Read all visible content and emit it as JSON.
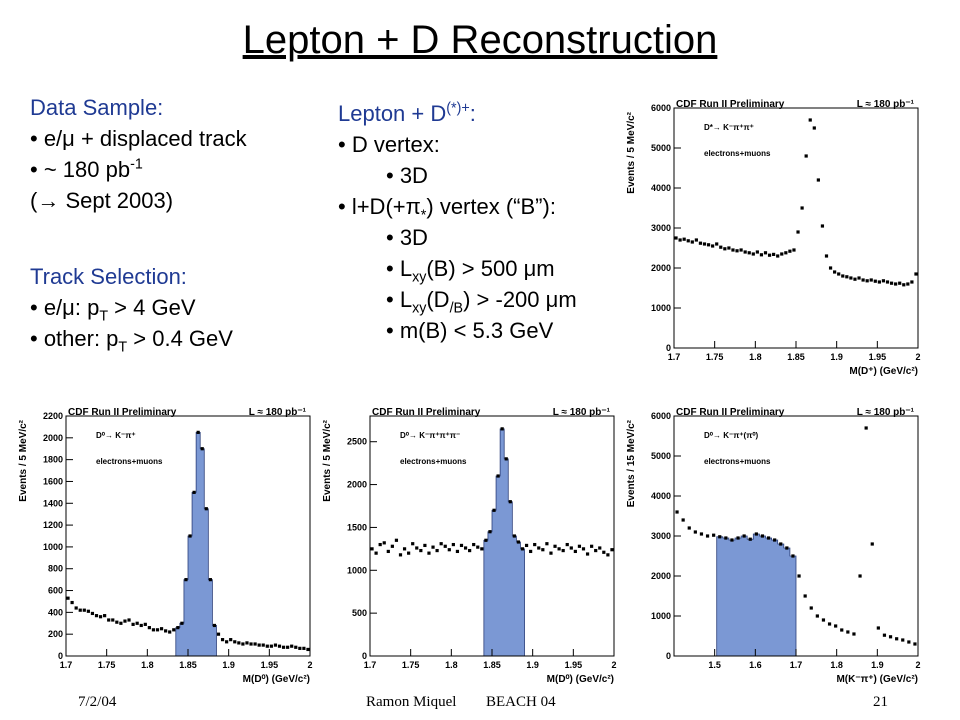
{
  "title": "Lepton + D Reconstruction",
  "data_sample": {
    "heading": "Data Sample:",
    "items": [
      "e/μ + displaced track",
      "~ 180 pb-1",
      "(→ Sept 2003)"
    ]
  },
  "track_selection": {
    "heading": "Track Selection:",
    "items": [
      "e/μ: pT > 4 GeV",
      "other: pT > 0.4 GeV"
    ]
  },
  "lepton_d": {
    "heading": "Lepton + D(*)+:",
    "items": [
      "D vertex:",
      "3D",
      "l+D(+π*) vertex (“B”):",
      "3D",
      "Lxy(B) > 500 μm",
      "Lxy(D/B) > -200 μm",
      "m(B) < 5.3 GeV"
    ]
  },
  "footer": {
    "date": "7/2/04",
    "author": "Ramon Miquel",
    "conference": "BEACH 04",
    "page": "21"
  },
  "colors": {
    "heading": "#1f3a93",
    "fill": "#7b98d4",
    "marker": "#000000"
  },
  "chart_data": [
    {
      "type": "scatter",
      "header": "CDF Run II Preliminary",
      "lumi": "L ≈ 180 pb⁻¹",
      "decay": "D*→ K⁻π⁺π⁺",
      "sample": "electrons+muons",
      "xlabel": "M(D⁺) (GeV/c²)",
      "ylabel": "Events / 5 MeV/c²",
      "xlim": [
        1.7,
        2.0
      ],
      "ylim": [
        0,
        6000
      ],
      "xticks": [
        1.7,
        1.75,
        1.8,
        1.85,
        1.9,
        1.95,
        2.0
      ],
      "xticklabels": [
        "1.7",
        "1.75",
        "1.8",
        "1.85",
        "1.9",
        "1.95",
        "2"
      ],
      "yticks": [
        0,
        1000,
        2000,
        3000,
        4000,
        5000,
        6000
      ],
      "x": [
        1.7025,
        1.7075,
        1.7125,
        1.7175,
        1.7225,
        1.7275,
        1.7325,
        1.7375,
        1.7425,
        1.7475,
        1.7525,
        1.7575,
        1.7625,
        1.7675,
        1.7725,
        1.7775,
        1.7825,
        1.7875,
        1.7925,
        1.7975,
        1.8025,
        1.8075,
        1.8125,
        1.8175,
        1.8225,
        1.8275,
        1.8325,
        1.8375,
        1.8425,
        1.8475,
        1.8525,
        1.8575,
        1.8625,
        1.8675,
        1.8725,
        1.8775,
        1.8825,
        1.8875,
        1.8925,
        1.8975,
        1.9025,
        1.9075,
        1.9125,
        1.9175,
        1.9225,
        1.9275,
        1.9325,
        1.9375,
        1.9425,
        1.9475,
        1.9525,
        1.9575,
        1.9625,
        1.9675,
        1.9725,
        1.9775,
        1.9825,
        1.9875,
        1.9925,
        1.9975
      ],
      "y": [
        2750,
        2700,
        2720,
        2680,
        2650,
        2700,
        2620,
        2600,
        2580,
        2550,
        2600,
        2520,
        2480,
        2500,
        2450,
        2430,
        2450,
        2400,
        2380,
        2350,
        2400,
        2330,
        2380,
        2320,
        2340,
        2300,
        2350,
        2380,
        2420,
        2450,
        2900,
        3500,
        4800,
        5700,
        5500,
        4200,
        3050,
        2300,
        2000,
        1900,
        1850,
        1800,
        1780,
        1750,
        1720,
        1750,
        1700,
        1680,
        1700,
        1670,
        1650,
        1680,
        1650,
        1620,
        1600,
        1620,
        1580,
        1600,
        1650,
        1850
      ],
      "filled": false
    },
    {
      "type": "area",
      "header": "CDF Run II Preliminary",
      "lumi": "L ≈ 180 pb⁻¹",
      "decay": "D⁰→ K⁻π⁺",
      "sample": "electrons+muons",
      "xlabel": "M(D⁰) (GeV/c²)",
      "ylabel": "Events / 5 MeV/c²",
      "xlim": [
        1.7,
        2.0
      ],
      "ylim": [
        0,
        2200
      ],
      "xticks": [
        1.7,
        1.75,
        1.8,
        1.85,
        1.9,
        1.95,
        2.0
      ],
      "xticklabels": [
        "1.7",
        "1.75",
        "1.8",
        "1.85",
        "1.9",
        "1.95",
        "2"
      ],
      "yticks": [
        0,
        200,
        400,
        600,
        800,
        1000,
        1200,
        1400,
        1600,
        1800,
        2000,
        2200
      ],
      "x": [
        1.7025,
        1.7075,
        1.7125,
        1.7175,
        1.7225,
        1.7275,
        1.7325,
        1.7375,
        1.7425,
        1.7475,
        1.7525,
        1.7575,
        1.7625,
        1.7675,
        1.7725,
        1.7775,
        1.7825,
        1.7875,
        1.7925,
        1.7975,
        1.8025,
        1.8075,
        1.8125,
        1.8175,
        1.8225,
        1.8275,
        1.8325,
        1.8375,
        1.8425,
        1.8475,
        1.8525,
        1.8575,
        1.8625,
        1.8675,
        1.8725,
        1.8775,
        1.8825,
        1.8875,
        1.8925,
        1.8975,
        1.9025,
        1.9075,
        1.9125,
        1.9175,
        1.9225,
        1.9275,
        1.9325,
        1.9375,
        1.9425,
        1.9475,
        1.9525,
        1.9575,
        1.9625,
        1.9675,
        1.9725,
        1.9775,
        1.9825,
        1.9875,
        1.9925,
        1.9975
      ],
      "y": [
        530,
        490,
        440,
        420,
        420,
        410,
        390,
        370,
        360,
        370,
        330,
        330,
        310,
        300,
        320,
        330,
        290,
        300,
        280,
        290,
        260,
        240,
        240,
        250,
        230,
        220,
        240,
        260,
        300,
        700,
        1100,
        1500,
        2050,
        1900,
        1350,
        700,
        280,
        200,
        150,
        130,
        150,
        130,
        120,
        110,
        120,
        110,
        110,
        100,
        100,
        90,
        90,
        100,
        90,
        80,
        80,
        90,
        80,
        70,
        70,
        60
      ],
      "filled": true,
      "fill_range": [
        1.835,
        1.885
      ]
    },
    {
      "type": "area",
      "header": "CDF Run II Preliminary",
      "lumi": "L ≈ 180 pb⁻¹",
      "decay": "D⁰→ K⁻π⁺π⁺π⁻",
      "sample": "electrons+muons",
      "xlabel": "M(D⁰) (GeV/c²)",
      "ylabel": "Events / 5 MeV/c²",
      "xlim": [
        1.7,
        2.0
      ],
      "ylim": [
        0,
        2800
      ],
      "xticks": [
        1.7,
        1.75,
        1.8,
        1.85,
        1.9,
        1.95,
        2.0
      ],
      "xticklabels": [
        "1.7",
        "1.75",
        "1.8",
        "1.85",
        "1.9",
        "1.95",
        "2"
      ],
      "yticks": [
        0,
        500,
        1000,
        1500,
        2000,
        2500
      ],
      "x": [
        1.7025,
        1.7075,
        1.7125,
        1.7175,
        1.7225,
        1.7275,
        1.7325,
        1.7375,
        1.7425,
        1.7475,
        1.7525,
        1.7575,
        1.7625,
        1.7675,
        1.7725,
        1.7775,
        1.7825,
        1.7875,
        1.7925,
        1.7975,
        1.8025,
        1.8075,
        1.8125,
        1.8175,
        1.8225,
        1.8275,
        1.8325,
        1.8375,
        1.8425,
        1.8475,
        1.8525,
        1.8575,
        1.8625,
        1.8675,
        1.8725,
        1.8775,
        1.8825,
        1.8875,
        1.8925,
        1.8975,
        1.9025,
        1.9075,
        1.9125,
        1.9175,
        1.9225,
        1.9275,
        1.9325,
        1.9375,
        1.9425,
        1.9475,
        1.9525,
        1.9575,
        1.9625,
        1.9675,
        1.9725,
        1.9775,
        1.9825,
        1.9875,
        1.9925,
        1.9975
      ],
      "y": [
        1250,
        1200,
        1300,
        1320,
        1220,
        1280,
        1350,
        1180,
        1250,
        1200,
        1310,
        1260,
        1230,
        1290,
        1200,
        1270,
        1230,
        1310,
        1280,
        1240,
        1300,
        1220,
        1290,
        1260,
        1230,
        1300,
        1270,
        1250,
        1350,
        1450,
        1700,
        2100,
        2650,
        2300,
        1800,
        1400,
        1330,
        1250,
        1290,
        1220,
        1300,
        1260,
        1240,
        1310,
        1200,
        1280,
        1250,
        1230,
        1300,
        1260,
        1220,
        1280,
        1250,
        1190,
        1280,
        1230,
        1260,
        1210,
        1180,
        1240
      ],
      "filled": true,
      "fill_range": [
        1.84,
        1.89
      ]
    },
    {
      "type": "area",
      "header": "CDF Run II Preliminary",
      "lumi": "L ≈ 180 pb⁻¹",
      "decay": "D⁰→ K⁻π⁺(π⁰)",
      "sample": "electrons+muons",
      "xlabel": "M(K⁻π⁺) (GeV/c²)",
      "ylabel": "Events / 15 MeV/c²",
      "xlim": [
        1.4,
        2.0
      ],
      "ylim": [
        0,
        6000
      ],
      "xticks": [
        1.5,
        1.6,
        1.7,
        1.8,
        1.9,
        2.0
      ],
      "xticklabels": [
        "1.5",
        "1.6",
        "1.7",
        "1.8",
        "1.9",
        "2"
      ],
      "yticks": [
        0,
        1000,
        2000,
        3000,
        4000,
        5000,
        6000
      ],
      "x": [
        1.4075,
        1.4225,
        1.4375,
        1.4525,
        1.4675,
        1.4825,
        1.4975,
        1.5125,
        1.5275,
        1.5425,
        1.5575,
        1.5725,
        1.5875,
        1.6025,
        1.6175,
        1.6325,
        1.6475,
        1.6625,
        1.6775,
        1.6925,
        1.7075,
        1.7225,
        1.7375,
        1.7525,
        1.7675,
        1.7825,
        1.7975,
        1.8125,
        1.8275,
        1.8425,
        1.8575,
        1.8725,
        1.8875,
        1.9025,
        1.9175,
        1.9325,
        1.9475,
        1.9625,
        1.9775,
        1.9925
      ],
      "y": [
        3600,
        3400,
        3200,
        3100,
        3050,
        3000,
        3020,
        2980,
        2950,
        2900,
        2950,
        3000,
        2920,
        3050,
        3000,
        2950,
        2900,
        2800,
        2700,
        2500,
        2000,
        1500,
        1200,
        1000,
        900,
        800,
        750,
        650,
        600,
        550,
        2000,
        5700,
        2800,
        700,
        520,
        480,
        430,
        400,
        350,
        300
      ],
      "filled": true,
      "fill_range": [
        1.5,
        1.7
      ]
    }
  ]
}
